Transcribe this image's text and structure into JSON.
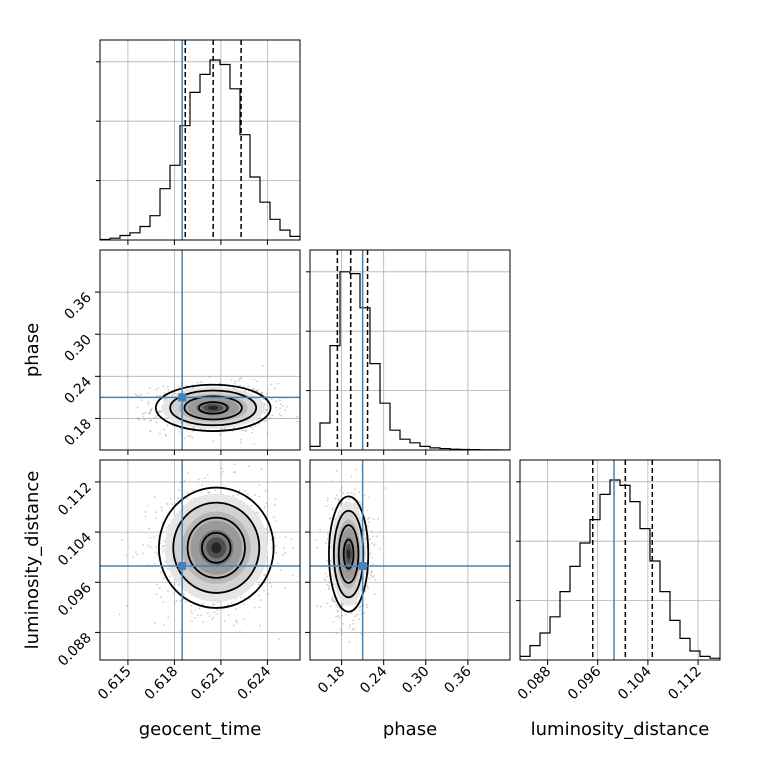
{
  "chart_data": {
    "type": "corner",
    "parameters": [
      "geocent_time",
      "phase",
      "luminosity_distance"
    ],
    "truth_color": "#4682b4",
    "truths": {
      "geocent_time": 0.6185,
      "phase": 0.21,
      "luminosity_distance": 0.0986
    },
    "quantiles": {
      "geocent_time": [
        0.6187,
        0.6205,
        0.6223
      ],
      "phase": [
        0.174,
        0.193,
        0.217
      ],
      "luminosity_distance": [
        0.0952,
        0.1004,
        0.1047
      ]
    },
    "ranges": {
      "geocent_time": [
        0.6132,
        0.6261
      ],
      "phase": [
        0.135,
        0.42
      ],
      "luminosity_distance": [
        0.0836,
        0.1155
      ]
    },
    "ticks": {
      "geocent_time": [
        0.615,
        0.618,
        0.621,
        0.624
      ],
      "phase": [
        0.18,
        0.24,
        0.3,
        0.36
      ],
      "luminosity_distance": [
        0.088,
        0.096,
        0.104,
        0.112
      ]
    },
    "tick_labels": {
      "geocent_time": [
        "0.615",
        "0.618",
        "0.621",
        "0.624"
      ],
      "phase": [
        "0.18",
        "0.24",
        "0.30",
        "0.36"
      ],
      "luminosity_distance": [
        "0.088",
        "0.096",
        "0.104",
        "0.112"
      ]
    },
    "histograms": {
      "geocent_time": [
        0.003,
        0.01,
        0.025,
        0.04,
        0.075,
        0.135,
        0.285,
        0.415,
        0.635,
        0.82,
        0.92,
        1.0,
        0.975,
        0.84,
        0.585,
        0.35,
        0.21,
        0.115,
        0.055,
        0.02
      ],
      "phase": [
        0.02,
        0.15,
        0.58,
        0.99,
        0.98,
        0.79,
        0.48,
        0.26,
        0.11,
        0.06,
        0.04,
        0.02,
        0.012,
        0.008,
        0.004,
        0.003,
        0.002,
        0.001,
        0.001,
        0.0
      ],
      "luminosity_distance": [
        0.02,
        0.08,
        0.15,
        0.24,
        0.38,
        0.52,
        0.65,
        0.78,
        0.92,
        1.0,
        0.97,
        0.88,
        0.73,
        0.55,
        0.38,
        0.22,
        0.12,
        0.05,
        0.02,
        0.01
      ]
    },
    "kde_2d": {
      "geocent_time__phase": {
        "mean": [
          0.6205,
          0.195
        ],
        "sd": [
          0.00185,
          0.0165
        ]
      },
      "geocent_time__luminosity_distance": {
        "mean": [
          0.6207,
          0.1015
        ],
        "sd": [
          0.00185,
          0.0048
        ]
      },
      "phase__luminosity_distance": {
        "mean": [
          0.19,
          0.1005
        ],
        "sd": [
          0.014,
          0.0046
        ]
      }
    },
    "contour_levels_sigma": [
      0.5,
      1.0,
      1.5,
      2.0
    ],
    "grid": true
  }
}
